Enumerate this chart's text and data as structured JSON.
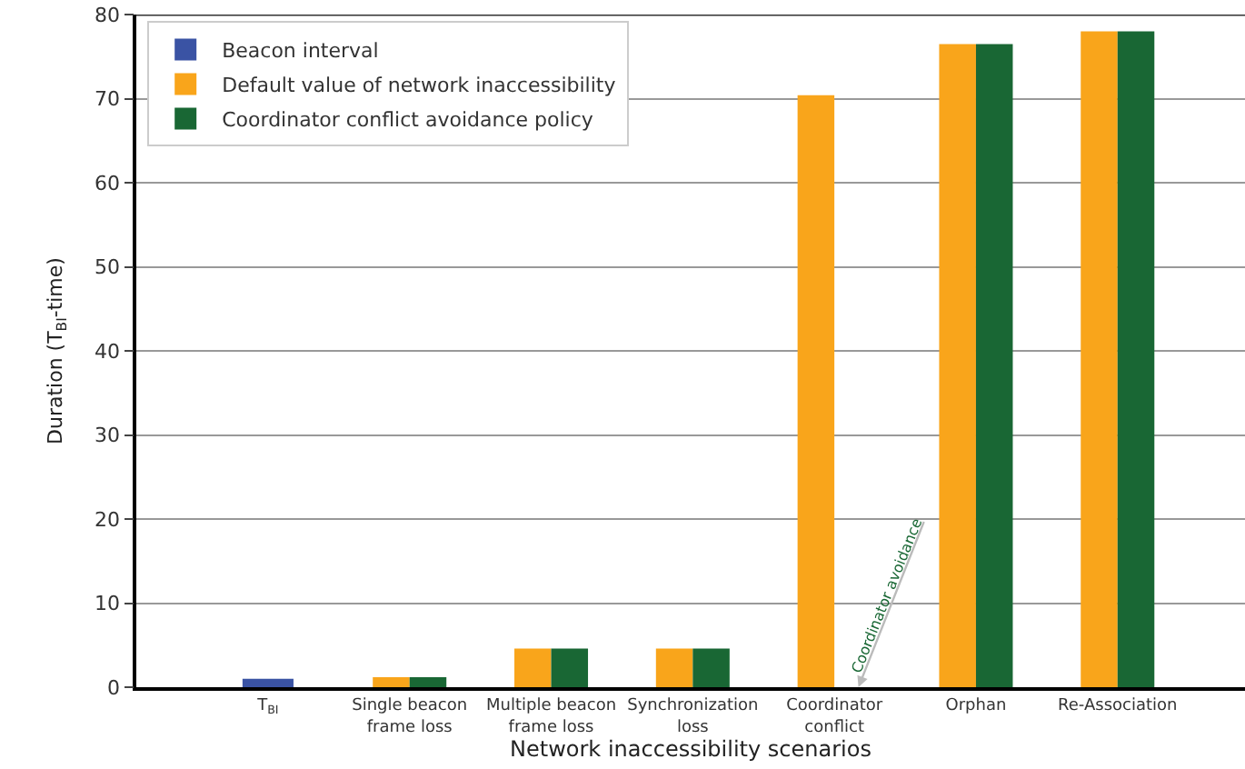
{
  "chart_data": {
    "type": "bar",
    "xlabel": "Network inaccessibility scenarios",
    "ylabel": "Duration (T$_{BI}$-time)",
    "categories": [
      "T$_{BI}$",
      "Single beacon frame loss",
      "Multiple beacon frame loss",
      "Synchronization loss",
      "Coordinator conflict",
      "Orphan",
      "Re-Association"
    ],
    "series": [
      {
        "name": "Beacon interval",
        "color": "#3a53a4",
        "values": [
          1,
          null,
          null,
          null,
          null,
          null,
          null
        ]
      },
      {
        "name": "Default value of network inaccessibility",
        "color": "#f9a51b",
        "values": [
          null,
          1.2,
          4.6,
          4.6,
          70.4,
          76.5,
          78
        ]
      },
      {
        "name": "Coordinator conflict avoidance policy",
        "color": "#196734",
        "values": [
          null,
          1.2,
          4.6,
          4.6,
          null,
          76.5,
          78
        ]
      }
    ],
    "annotations": [
      {
        "text": "Coordinator avoidance",
        "x": "Coordinator conflict",
        "y": 0
      }
    ],
    "ylim": [
      0,
      80
    ],
    "yticks": [
      0,
      10,
      20,
      30,
      40,
      50,
      60,
      70,
      80
    ],
    "grid": "y",
    "legend": "top left"
  }
}
